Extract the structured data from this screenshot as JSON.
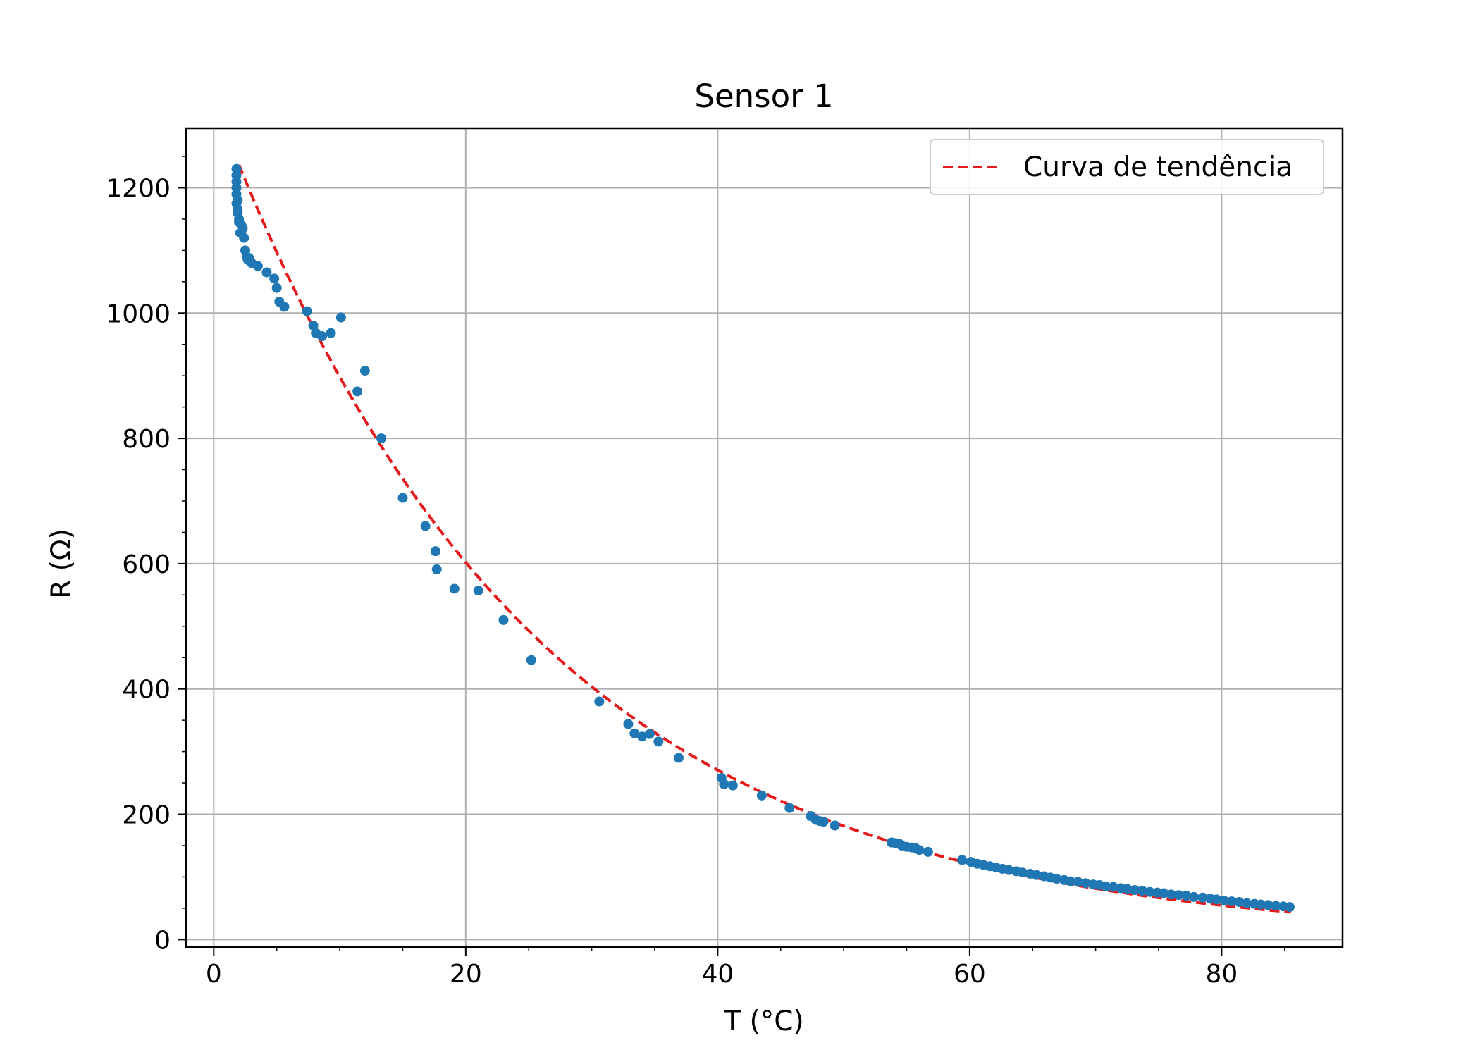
{
  "chart_data": {
    "type": "scatter",
    "title": "Sensor 1",
    "xlabel": "T (°C)",
    "ylabel": "R (Ω)",
    "xlim": [
      -2.2,
      89.6
    ],
    "ylim": [
      -12,
      1295
    ],
    "xticks": [
      0,
      20,
      40,
      60,
      80
    ],
    "yticks": [
      0,
      200,
      400,
      600,
      800,
      1000,
      1200
    ],
    "x_minor_step": 5,
    "y_minor_step": 50,
    "grid": true,
    "legend_position": "top-right",
    "colors": {
      "points": "#1f77b4",
      "trend": "#e41a1c",
      "grid": "#b0b0b0"
    },
    "series": [
      {
        "type": "scatter",
        "x": [
          1.8,
          1.8,
          1.8,
          1.8,
          1.8,
          1.8,
          1.9,
          1.9,
          1.9,
          2.0,
          2.0,
          2.1,
          2.2,
          2.3,
          2.4,
          2.5,
          2.6,
          2.7,
          2.8,
          2.9,
          3.0,
          3.5,
          4.2,
          4.8,
          5.0,
          5.2,
          5.6,
          7.4,
          7.9,
          8.1,
          8.6,
          9.3,
          10.1,
          11.4,
          12.0,
          13.3,
          15.0,
          16.8,
          17.6,
          17.7,
          19.1,
          21.0,
          23.0,
          25.2,
          30.6,
          32.9,
          33.4,
          34.0,
          34.6,
          35.3,
          36.9,
          40.3,
          40.5,
          41.2,
          43.5,
          45.7,
          47.4,
          47.8,
          48.1,
          48.4,
          49.3,
          53.8,
          54.1,
          54.4,
          54.6,
          55.0,
          55.4,
          55.7,
          56.0,
          56.7,
          59.4,
          60.1,
          60.6,
          61.1,
          61.6,
          62.1,
          62.6,
          63.1,
          63.7,
          64.2,
          64.8,
          65.3,
          65.9,
          66.4,
          66.9,
          67.5,
          68.0,
          68.6,
          69.2,
          69.8,
          70.3,
          70.8,
          71.4,
          72.0,
          72.5,
          73.1,
          73.7,
          74.3,
          74.9,
          75.4,
          76.0,
          76.6,
          77.2,
          77.8,
          78.5,
          79.1,
          79.6,
          80.2,
          80.8,
          81.4,
          82.0,
          82.6,
          83.1,
          83.7,
          84.3,
          84.9,
          85.4
        ],
        "y": [
          1230,
          1220,
          1210,
          1200,
          1190,
          1175,
          1165,
          1180,
          1160,
          1150,
          1145,
          1128,
          1140,
          1135,
          1120,
          1100,
          1090,
          1085,
          1088,
          1083,
          1080,
          1075,
          1065,
          1055,
          1040,
          1018,
          1010,
          1003,
          980,
          968,
          963,
          968,
          993,
          875,
          908,
          800,
          705,
          660,
          620,
          591,
          560,
          557,
          510,
          446,
          380,
          344,
          329,
          324,
          328,
          316,
          290,
          258,
          248,
          246,
          230,
          210,
          197,
          191,
          189,
          188,
          182,
          155,
          154,
          153,
          150,
          148,
          147,
          146,
          143,
          140,
          127,
          124,
          121,
          119,
          117,
          115,
          113,
          111,
          109,
          107,
          105,
          103,
          101,
          99,
          97,
          95,
          93,
          92,
          90,
          88,
          87,
          85,
          84,
          82,
          81,
          79,
          78,
          76,
          75,
          74,
          72,
          71,
          70,
          68,
          67,
          65,
          64,
          62,
          61,
          60,
          58,
          57,
          56,
          55,
          54,
          53,
          52
        ],
        "marker": "circle"
      },
      {
        "name": "Curva de tendência",
        "type": "line",
        "style": "dashed",
        "fit": {
          "A": 1340,
          "k": 0.04,
          "x_from": 2,
          "x_to": 85.5
        }
      }
    ]
  }
}
